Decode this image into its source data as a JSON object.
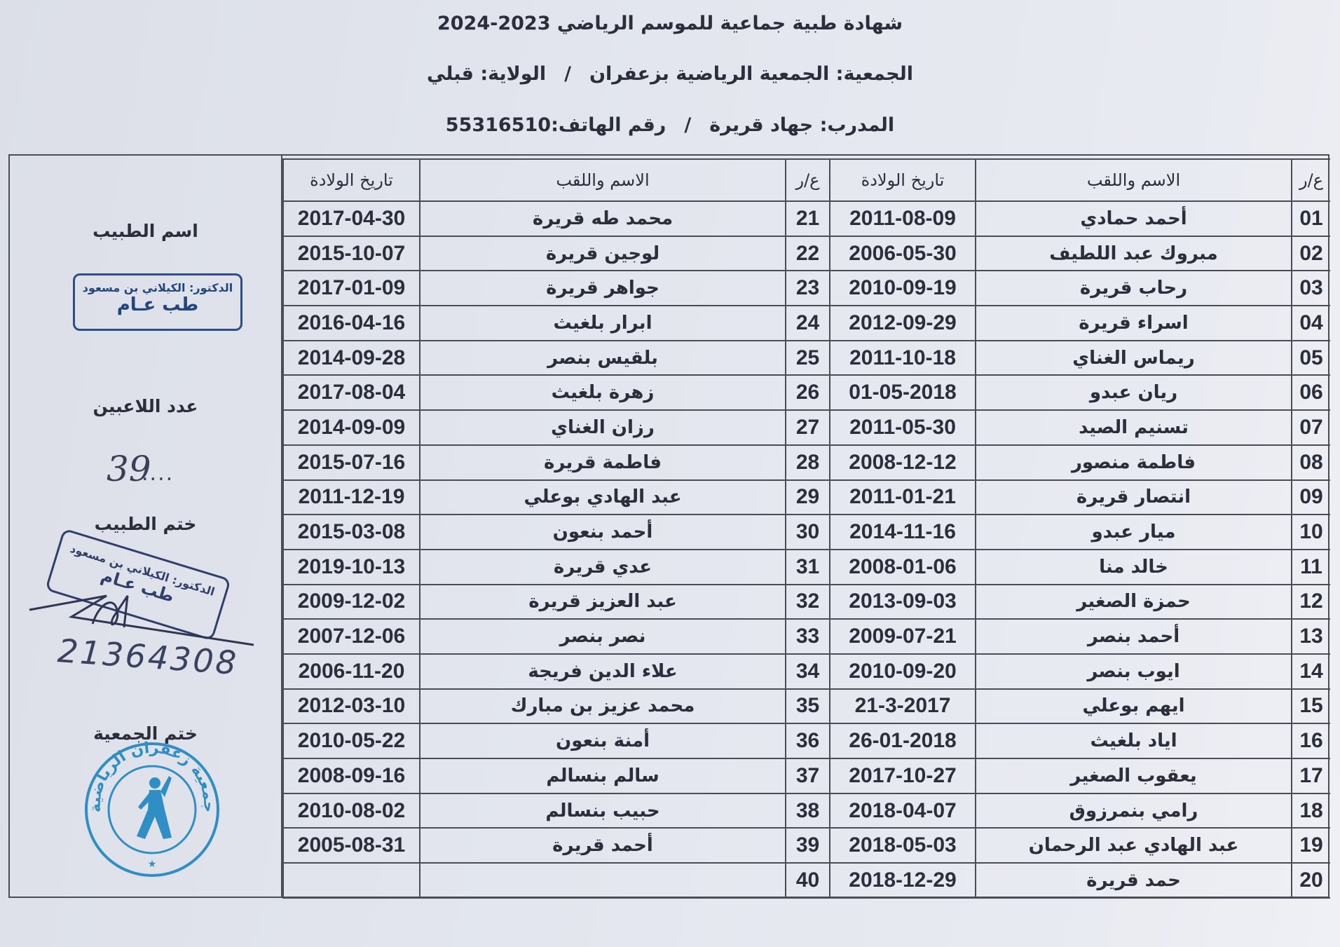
{
  "header": {
    "title": "شهادة طبية جماعية للموسم الرياضي 2023-2024",
    "club": "الجمعية: الجمعية الرياضية بزعفران",
    "state": "الولاية: قبلي",
    "coach": "المدرب: جهاد قريرة",
    "phone": "رقم الهاتف:55316510",
    "separator": "/"
  },
  "table": {
    "columns": {
      "num": "ع/ر",
      "name": "الاسم واللقب",
      "dob": "تاريخ الولادة"
    },
    "rows_right": [
      {
        "num": "01",
        "name": "أحمد حمادي",
        "dob": "2011-08-09"
      },
      {
        "num": "02",
        "name": "مبروك عبد اللطيف",
        "dob": "2006-05-30"
      },
      {
        "num": "03",
        "name": "رحاب قريرة",
        "dob": "2010-09-19"
      },
      {
        "num": "04",
        "name": "اسراء قريرة",
        "dob": "2012-09-29"
      },
      {
        "num": "05",
        "name": "ريماس الغناي",
        "dob": "2011-10-18"
      },
      {
        "num": "06",
        "name": "ريان عبدو",
        "dob": "01-05-2018"
      },
      {
        "num": "07",
        "name": "تسنيم الصيد",
        "dob": "2011-05-30"
      },
      {
        "num": "08",
        "name": "فاطمة منصور",
        "dob": "2008-12-12"
      },
      {
        "num": "09",
        "name": "انتصار قريرة",
        "dob": "2011-01-21"
      },
      {
        "num": "10",
        "name": "ميار عبدو",
        "dob": "2014-11-16"
      },
      {
        "num": "11",
        "name": "خالد منا",
        "dob": "2008-01-06"
      },
      {
        "num": "12",
        "name": "حمزة الصغير",
        "dob": "2013-09-03"
      },
      {
        "num": "13",
        "name": "أحمد بنصر",
        "dob": "2009-07-21"
      },
      {
        "num": "14",
        "name": "ايوب بنصر",
        "dob": "2010-09-20"
      },
      {
        "num": "15",
        "name": "ايهم بوعلي",
        "dob": "21-3-2017"
      },
      {
        "num": "16",
        "name": "اياد بلغيث",
        "dob": "26-01-2018"
      },
      {
        "num": "17",
        "name": "يعقوب الصغير",
        "dob": "2017-10-27"
      },
      {
        "num": "18",
        "name": "رامي بنمرزوق",
        "dob": "2018-04-07"
      },
      {
        "num": "19",
        "name": "عبد الهادي عبد الرحمان",
        "dob": "2018-05-03"
      },
      {
        "num": "20",
        "name": "حمد قريرة",
        "dob": "2018-12-29"
      }
    ],
    "rows_left": [
      {
        "num": "21",
        "name": "محمد طه  قريرة",
        "dob": "2017-04-30"
      },
      {
        "num": "22",
        "name": "لوجين قريرة",
        "dob": "2015-10-07"
      },
      {
        "num": "23",
        "name": "جواهر قريرة",
        "dob": "2017-01-09"
      },
      {
        "num": "24",
        "name": "ابرار بلغيث",
        "dob": "2016-04-16"
      },
      {
        "num": "25",
        "name": "بلقيس  بنصر",
        "dob": "2014-09-28"
      },
      {
        "num": "26",
        "name": "زهرة بلغيث",
        "dob": "2017-08-04"
      },
      {
        "num": "27",
        "name": "رزان الغناي",
        "dob": "2014-09-09"
      },
      {
        "num": "28",
        "name": "فاطمة قريرة",
        "dob": "2015-07-16"
      },
      {
        "num": "29",
        "name": "عبد الهادي بوعلي",
        "dob": "2011-12-19"
      },
      {
        "num": "30",
        "name": "أحمد بنعون",
        "dob": "2015-03-08"
      },
      {
        "num": "31",
        "name": "عدي قريرة",
        "dob": "2019-10-13"
      },
      {
        "num": "32",
        "name": "عبد العزيز قريرة",
        "dob": "2009-12-02"
      },
      {
        "num": "33",
        "name": "نصر بنصر",
        "dob": "2007-12-06"
      },
      {
        "num": "34",
        "name": "علاء الدين فريجة",
        "dob": "2006-11-20"
      },
      {
        "num": "35",
        "name": "محمد عزيز بن مبارك",
        "dob": "2012-03-10"
      },
      {
        "num": "36",
        "name": "أمنة بنعون",
        "dob": "2010-05-22"
      },
      {
        "num": "37",
        "name": "سالم بنسالم",
        "dob": "2008-09-16"
      },
      {
        "num": "38",
        "name": "حبيب بنسالم",
        "dob": "2010-08-02"
      },
      {
        "num": "39",
        "name": "أحمد قريرة",
        "dob": "2005-08-31"
      },
      {
        "num": "40",
        "name": "",
        "dob": ""
      }
    ]
  },
  "sidebar": {
    "doctor_name_label": "اسم الطبيب",
    "doctor_stamp": {
      "line1": "الدكتور: الكيلاني بن مسعود",
      "line2": "طب عـام"
    },
    "players_count_label": "عدد اللاعبين",
    "players_count": "39",
    "players_count_dots": "....",
    "doctor_seal_label": "ختم الطبيب",
    "doctor_seal": {
      "line1": "الدكتور: الكيلاني بن مسعود",
      "line2": "طب عـام"
    },
    "doctor_number": "21364308",
    "club_seal_label": "ختم الجمعية",
    "club_seal_text": "جمعية زعفران الرياضية",
    "stamp_color": "#2f8fc4",
    "ink_color": "#2d4f86"
  }
}
